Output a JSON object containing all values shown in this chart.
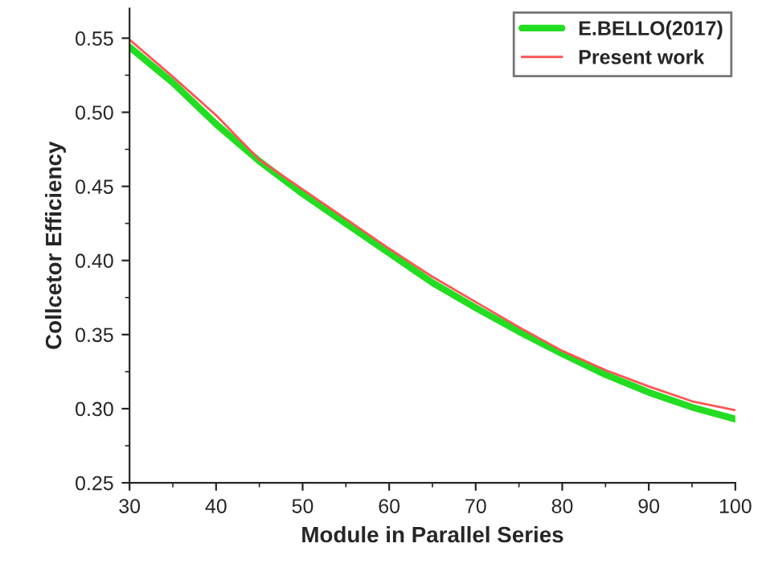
{
  "chart_data": {
    "type": "line",
    "xlabel": "Module in Parallel Series",
    "ylabel": "Collcetor Efficiency",
    "x": [
      30,
      35,
      40,
      45,
      50,
      55,
      60,
      65,
      70,
      75,
      80,
      85,
      90,
      95,
      100
    ],
    "series": [
      {
        "name": "E.BELLO(2017)",
        "color": "#22dd22",
        "values": [
          0.544,
          0.52,
          0.492,
          0.467,
          0.445,
          0.425,
          0.405,
          0.385,
          0.368,
          0.352,
          0.337,
          0.323,
          0.311,
          0.301,
          0.293
        ]
      },
      {
        "name": "Present work",
        "color": "#ff5555",
        "values": [
          0.549,
          0.524,
          0.498,
          0.468,
          0.448,
          0.428,
          0.408,
          0.389,
          0.372,
          0.355,
          0.339,
          0.326,
          0.315,
          0.305,
          0.299
        ]
      }
    ],
    "xlim": [
      30,
      100
    ],
    "xticks": [
      30,
      40,
      50,
      60,
      70,
      80,
      90,
      100
    ],
    "ylim": [
      0.25,
      0.57
    ],
    "yticks": [
      {
        "value": 0.25,
        "label": "0.25"
      },
      {
        "value": 0.3,
        "label": "0.30"
      },
      {
        "value": 0.35,
        "label": "0.35"
      },
      {
        "value": 0.4,
        "label": "0.40"
      },
      {
        "value": 0.45,
        "label": "0.45"
      },
      {
        "value": 0.5,
        "label": "0.50"
      },
      {
        "value": 0.55,
        "label": "0.55"
      }
    ],
    "legend": "top right",
    "grid": false
  }
}
